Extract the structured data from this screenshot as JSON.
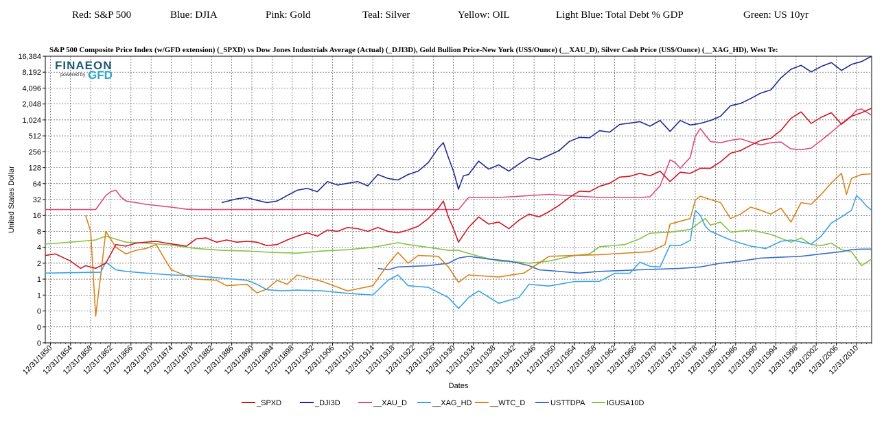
{
  "header_labels": [
    {
      "text": "Red: S&P 500"
    },
    {
      "text": "Blue: DJIA"
    },
    {
      "text": "Pink: Gold"
    },
    {
      "text": "Teal: Silver"
    },
    {
      "text": "Yellow: OIL"
    },
    {
      "text": "Light Blue: Total Debt % GDP"
    },
    {
      "text": "Green: US 10yr"
    }
  ],
  "logo": {
    "main": "FINAEON",
    "powered": "powered by",
    "gfd": "GFD"
  },
  "chart_data": {
    "type": "line",
    "title": "S&P 500 Composite Price Index (w/GFD extension) (_SPXD)  vs  Dow Jones Industrials Average (Actual) (_DJI3D), Gold Bullion Price-New York (US$/Ounce) (__XAU_D), Silver Cash Price (US$/Ounce) (__XAG_HD), West Te:",
    "xlabel": "Dates",
    "ylabel": "United States Dollar",
    "x_range": [
      1850,
      2014
    ],
    "y_scale": "log2",
    "y_tick_labels": [
      "16,384",
      "8,192",
      "4,096",
      "2,048",
      "1,024",
      "512",
      "256",
      "128",
      "64",
      "32",
      "16",
      "8",
      "4",
      "2",
      "1",
      "1",
      "0",
      "0",
      "0"
    ],
    "x_tick_labels": [
      "12/31/1850",
      "12/31/1854",
      "12/31/1858",
      "12/31/1862",
      "12/31/1866",
      "12/31/1870",
      "12/31/1874",
      "12/31/1878",
      "12/31/1882",
      "12/31/1886",
      "12/31/1890",
      "12/31/1894",
      "12/31/1898",
      "12/31/1902",
      "12/31/1906",
      "12/31/1910",
      "12/31/1914",
      "12/31/1918",
      "12/31/1922",
      "12/31/1926",
      "12/31/1930",
      "12/31/1934",
      "12/31/1938",
      "12/31/1942",
      "12/31/1946",
      "12/31/1950",
      "12/31/1954",
      "12/31/1958",
      "12/31/1962",
      "12/31/1966",
      "12/31/1970",
      "12/31/1974",
      "12/31/1978",
      "12/31/1982",
      "12/31/1986",
      "12/31/1990",
      "12/31/1994",
      "12/31/1998",
      "12/31/2002",
      "12/31/2006",
      "12/31/2010"
    ],
    "grid": true,
    "legend_position": "bottom",
    "series": [
      {
        "name": "_SPXD",
        "color": "#d2141e",
        "x": [
          1850,
          1852,
          1855,
          1857,
          1858,
          1860,
          1862,
          1864,
          1866,
          1868,
          1870,
          1872,
          1874,
          1876,
          1878,
          1880,
          1882,
          1884,
          1886,
          1888,
          1890,
          1892,
          1894,
          1896,
          1898,
          1900,
          1902,
          1904,
          1906,
          1908,
          1910,
          1912,
          1914,
          1916,
          1918,
          1920,
          1922,
          1924,
          1926,
          1928,
          1929,
          1930,
          1931,
          1932,
          1934,
          1936,
          1938,
          1940,
          1942,
          1944,
          1946,
          1948,
          1950,
          1952,
          1954,
          1956,
          1958,
          1960,
          1962,
          1964,
          1966,
          1968,
          1970,
          1972,
          1974,
          1976,
          1978,
          1980,
          1982,
          1984,
          1986,
          1988,
          1990,
          1992,
          1994,
          1996,
          1998,
          2000,
          2002,
          2004,
          2006,
          2008,
          2010,
          2012,
          2014
        ],
        "y": [
          2.8,
          3.0,
          2.2,
          1.6,
          1.8,
          1.6,
          2.0,
          4.5,
          4.2,
          4.8,
          5.0,
          5.2,
          4.8,
          4.5,
          4.2,
          5.8,
          6.0,
          5.0,
          5.5,
          5.0,
          5.2,
          5.0,
          4.3,
          4.5,
          5.5,
          6.5,
          7.5,
          6.5,
          8.5,
          8.0,
          9.5,
          9.0,
          8.0,
          9.5,
          8.0,
          7.5,
          8.5,
          10.0,
          14.0,
          22.0,
          30.0,
          15.0,
          9.0,
          5.0,
          9.5,
          15.0,
          11.0,
          12.0,
          9.0,
          13.0,
          17.0,
          15.0,
          19.0,
          25.0,
          35.0,
          46.0,
          45.0,
          57.0,
          65.0,
          85.0,
          88.0,
          100.0,
          90.0,
          110.0,
          70.0,
          105.0,
          100.0,
          125.0,
          125.0,
          165.0,
          240.0,
          270.0,
          340.0,
          420.0,
          460.0,
          650.0,
          1100.0,
          1450.0,
          880.0,
          1150.0,
          1400.0,
          850.0,
          1200.0,
          1400.0,
          1700.0
        ]
      },
      {
        "name": "_DJI3D",
        "color": "#1c2a96",
        "x": [
          1885,
          1888,
          1890,
          1892,
          1894,
          1896,
          1898,
          1900,
          1902,
          1904,
          1906,
          1908,
          1910,
          1912,
          1914,
          1916,
          1918,
          1920,
          1922,
          1924,
          1926,
          1928,
          1929,
          1930,
          1931,
          1932,
          1933,
          1934,
          1936,
          1938,
          1940,
          1942,
          1944,
          1946,
          1948,
          1950,
          1952,
          1954,
          1956,
          1958,
          1960,
          1962,
          1964,
          1966,
          1968,
          1970,
          1972,
          1974,
          1976,
          1978,
          1980,
          1982,
          1984,
          1986,
          1988,
          1990,
          1992,
          1994,
          1996,
          1998,
          2000,
          2002,
          2004,
          2006,
          2008,
          2010,
          2012,
          2014
        ],
        "y": [
          28,
          33,
          35,
          31,
          28,
          30,
          38,
          48,
          52,
          45,
          70,
          60,
          65,
          70,
          58,
          95,
          80,
          75,
          95,
          110,
          160,
          300,
          380,
          200,
          110,
          50,
          90,
          95,
          170,
          120,
          145,
          110,
          150,
          200,
          180,
          220,
          270,
          400,
          480,
          470,
          640,
          600,
          840,
          890,
          950,
          780,
          1000,
          620,
          1000,
          820,
          880,
          1000,
          1200,
          1900,
          2100,
          2600,
          3300,
          3800,
          6400,
          9300,
          11000,
          8300,
          10500,
          12400,
          8800,
          11500,
          13000,
          16500
        ]
      },
      {
        "name": "__XAU_D",
        "color": "#e0487e",
        "x": [
          1850,
          1860,
          1861,
          1862,
          1863,
          1864,
          1865,
          1866,
          1868,
          1870,
          1875,
          1878,
          1880,
          1900,
          1920,
          1932,
          1934,
          1935,
          1940,
          1950,
          1960,
          1968,
          1970,
          1972,
          1974,
          1975,
          1976,
          1978,
          1979,
          1980,
          1982,
          1984,
          1986,
          1988,
          1990,
          1992,
          1994,
          1996,
          1998,
          2000,
          2002,
          2004,
          2006,
          2008,
          2010,
          2011,
          2012,
          2014
        ],
        "y": [
          20.67,
          20.67,
          28,
          38,
          45,
          48,
          36,
          30,
          28,
          26,
          23,
          21,
          20.67,
          20.67,
          20.67,
          20.67,
          35,
          35,
          35,
          40,
          35,
          35,
          36,
          58,
          180,
          160,
          125,
          200,
          500,
          700,
          400,
          380,
          420,
          450,
          390,
          345,
          380,
          390,
          290,
          280,
          300,
          420,
          600,
          870,
          1220,
          1570,
          1650,
          1250
        ]
      },
      {
        "name": "__XAG_HD",
        "color": "#3aa3e6",
        "x": [
          1850,
          1858,
          1861,
          1862,
          1864,
          1866,
          1870,
          1875,
          1880,
          1885,
          1890,
          1892,
          1894,
          1897,
          1900,
          1905,
          1910,
          1915,
          1918,
          1920,
          1922,
          1926,
          1930,
          1932,
          1933,
          1934,
          1936,
          1940,
          1944,
          1946,
          1950,
          1955,
          1960,
          1963,
          1966,
          1968,
          1970,
          1972,
          1974,
          1976,
          1978,
          1979,
          1980,
          1981,
          1982,
          1986,
          1990,
          1993,
          1996,
          1998,
          2002,
          2004,
          2006,
          2008,
          2010,
          2011,
          2012,
          2013,
          2014
        ],
        "y": [
          1.3,
          1.34,
          1.35,
          2.1,
          1.5,
          1.4,
          1.3,
          1.2,
          1.15,
          1.05,
          0.95,
          0.8,
          0.63,
          0.6,
          0.62,
          0.6,
          0.54,
          0.5,
          0.95,
          1.2,
          0.75,
          0.7,
          0.45,
          0.28,
          0.35,
          0.45,
          0.6,
          0.35,
          0.45,
          0.8,
          0.74,
          0.9,
          0.91,
          1.29,
          1.29,
          2.1,
          1.75,
          1.7,
          4.4,
          4.3,
          5.4,
          20.0,
          16.0,
          10.0,
          8.0,
          5.5,
          4.2,
          3.8,
          5.2,
          5.5,
          4.6,
          6.5,
          11.5,
          15.0,
          20.0,
          38.0,
          31.0,
          24.0,
          20.0
        ]
      },
      {
        "name": "__WTC_D",
        "color": "#dd8218",
        "x": [
          1858,
          1859,
          1860,
          1861,
          1862,
          1864,
          1866,
          1868,
          1870,
          1872,
          1875,
          1878,
          1880,
          1884,
          1886,
          1890,
          1892,
          1894,
          1896,
          1898,
          1900,
          1905,
          1910,
          1915,
          1918,
          1920,
          1922,
          1924,
          1928,
          1930,
          1932,
          1934,
          1940,
          1945,
          1950,
          1955,
          1960,
          1970,
          1973,
          1974,
          1978,
          1979,
          1980,
          1982,
          1984,
          1986,
          1988,
          1990,
          1992,
          1994,
          1996,
          1998,
          2000,
          2002,
          2004,
          2006,
          2008,
          2009,
          2010,
          2012,
          2014
        ],
        "y": [
          16,
          8,
          0.2,
          1.2,
          8,
          4.0,
          3.0,
          3.5,
          3.8,
          4.5,
          1.5,
          1.15,
          1.0,
          0.95,
          0.75,
          0.8,
          0.55,
          0.65,
          0.95,
          0.8,
          1.2,
          0.9,
          0.6,
          0.75,
          1.9,
          3.2,
          2.0,
          2.8,
          2.7,
          1.7,
          0.87,
          1.2,
          1.1,
          1.3,
          2.7,
          2.8,
          2.9,
          3.3,
          4.5,
          11.0,
          14.0,
          31.0,
          37.0,
          32.0,
          28.0,
          14.0,
          17.0,
          23.0,
          20.0,
          17.0,
          22.0,
          12.0,
          28.0,
          26.0,
          40.0,
          66.0,
          100.0,
          40.0,
          80.0,
          95.0,
          98.0
        ]
      },
      {
        "name": "USTTDPA",
        "color": "#3b6cc8",
        "x": [
          1916,
          1918,
          1920,
          1926,
          1930,
          1932,
          1934,
          1938,
          1942,
          1944,
          1946,
          1948,
          1952,
          1956,
          1960,
          1964,
          1968,
          1972,
          1976,
          1980,
          1984,
          1988,
          1992,
          1996,
          2000,
          2004,
          2008,
          2010,
          2012,
          2014
        ],
        "y": [
          1.6,
          1.5,
          1.7,
          1.8,
          2.0,
          2.5,
          2.7,
          2.4,
          2.2,
          2.0,
          1.8,
          1.5,
          1.4,
          1.3,
          1.4,
          1.45,
          1.5,
          1.55,
          1.6,
          1.7,
          2.0,
          2.2,
          2.5,
          2.6,
          2.7,
          3.0,
          3.3,
          3.6,
          3.7,
          3.7
        ]
      },
      {
        "name": "IGUSA10D",
        "color": "#84c342",
        "x": [
          1850,
          1855,
          1860,
          1862,
          1866,
          1870,
          1875,
          1880,
          1885,
          1890,
          1895,
          1900,
          1905,
          1910,
          1915,
          1920,
          1922,
          1926,
          1930,
          1932,
          1936,
          1940,
          1944,
          1946,
          1950,
          1955,
          1958,
          1960,
          1965,
          1968,
          1970,
          1974,
          1978,
          1980,
          1981,
          1982,
          1984,
          1986,
          1990,
          1994,
          1998,
          2000,
          2002,
          2004,
          2006,
          2008,
          2010,
          2012,
          2014
        ],
        "y": [
          4.6,
          5.0,
          5.5,
          6.5,
          5.0,
          4.8,
          4.4,
          3.8,
          3.5,
          3.4,
          3.2,
          3.1,
          3.4,
          3.6,
          4.0,
          4.9,
          4.5,
          4.0,
          3.5,
          3.5,
          2.7,
          2.2,
          2.1,
          2.0,
          2.2,
          2.8,
          3.0,
          4.1,
          4.5,
          5.8,
          7.4,
          7.7,
          8.7,
          12.0,
          14.0,
          10.5,
          12.0,
          7.7,
          8.5,
          7.0,
          5.0,
          6.0,
          4.5,
          4.3,
          4.8,
          3.6,
          3.3,
          1.8,
          2.4
        ]
      }
    ]
  }
}
